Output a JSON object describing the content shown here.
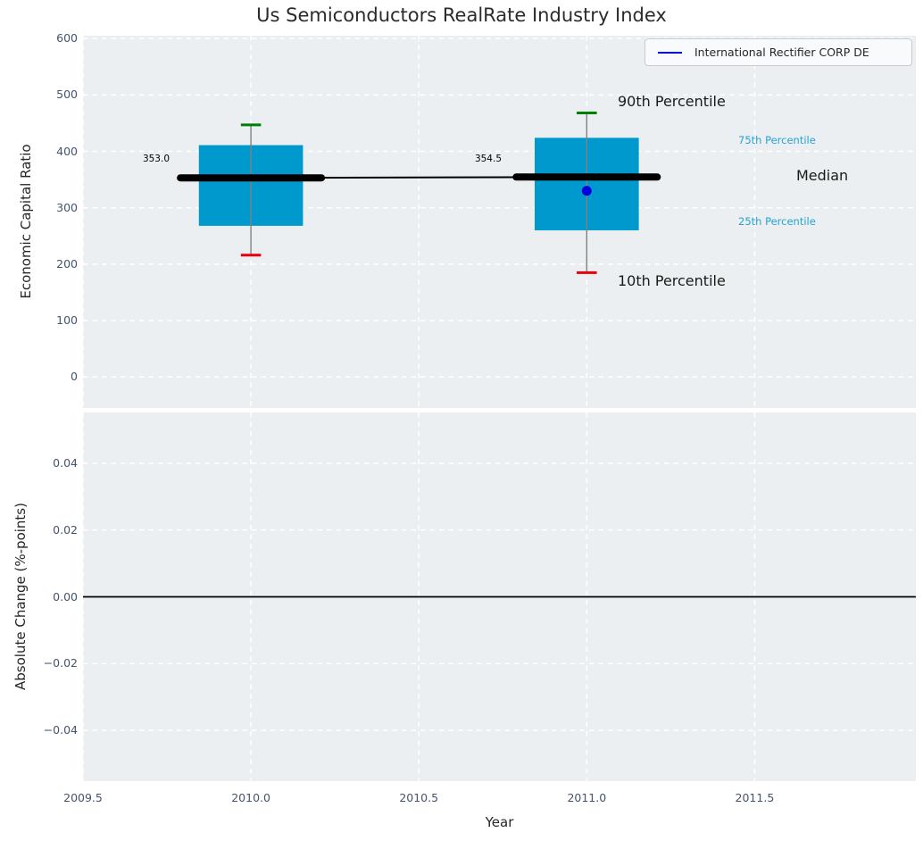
{
  "figure": {
    "title": "Us Semiconductors RealRate Industry Index"
  },
  "chart_data": [
    {
      "type": "boxplot",
      "title": "Us Semiconductors RealRate Industry Index",
      "ylabel": "Economic Capital Ratio",
      "xlim": [
        2009.5,
        2011.98
      ],
      "ylim": [
        -55,
        605
      ],
      "grid": true,
      "legend_position": "upper right",
      "y_ticks": [
        0,
        100,
        200,
        300,
        400,
        500,
        600
      ],
      "y_tick_labels": [
        "0",
        "100",
        "200",
        "300",
        "400",
        "500",
        "600"
      ],
      "x_ticks": [
        2009.5,
        2010.0,
        2010.5,
        2011.0,
        2011.5
      ],
      "x_tick_labels": [
        "2009.5",
        "2010.0",
        "2010.5",
        "2011.0",
        "2011.5"
      ],
      "box_width_years": 0.31,
      "median_span_years": 0.42,
      "cap_width_years": 0.06,
      "boxes": [
        {
          "year": 2010,
          "p10": 216,
          "q1": 268,
          "median": 353.0,
          "q3": 411,
          "p90": 447,
          "median_label": "353.0"
        },
        {
          "year": 2011,
          "p10": 185,
          "q1": 260,
          "median": 354.5,
          "q3": 424,
          "p90": 468,
          "median_label": "354.5"
        }
      ],
      "series": [
        {
          "name": "International Rectifier CORP DE",
          "color": "#0000dd",
          "marker": "circle",
          "points": [
            {
              "x": 2011,
              "y": 330
            }
          ]
        }
      ],
      "labels": {
        "p90": "90th Percentile",
        "p75": "75th Percentile",
        "median": "Median",
        "p25": "25th Percentile",
        "p10": "10th Percentile"
      }
    },
    {
      "type": "line",
      "ylabel": "Absolute Change (%-points)",
      "xlabel": "Year",
      "xlim": [
        2009.5,
        2011.98
      ],
      "ylim": [
        -0.0552,
        0.0552
      ],
      "grid": true,
      "y_ticks": [
        -0.04,
        -0.02,
        0.0,
        0.02,
        0.04
      ],
      "y_tick_labels": [
        "−0.04",
        "−0.02",
        "0.00",
        "0.02",
        "0.04"
      ],
      "x_ticks": [
        2009.5,
        2010.0,
        2010.5,
        2011.0,
        2011.5
      ],
      "x_tick_labels": [
        "2009.5",
        "2010.0",
        "2010.5",
        "2011.0",
        "2011.5"
      ],
      "zero_line": 0.0,
      "series": []
    }
  ],
  "colors": {
    "box_fill": "#0099cd",
    "whisker": "#808080",
    "cap_top": "#008000",
    "cap_bottom": "#e8000b",
    "median_line": "#000000",
    "company_point": "#0000dd",
    "percentile_text": "#25a2d4",
    "axes_background": "#eceff1",
    "grid_line": "#ffffff",
    "tick_text": "#44546b",
    "zero_line": "#000000"
  }
}
